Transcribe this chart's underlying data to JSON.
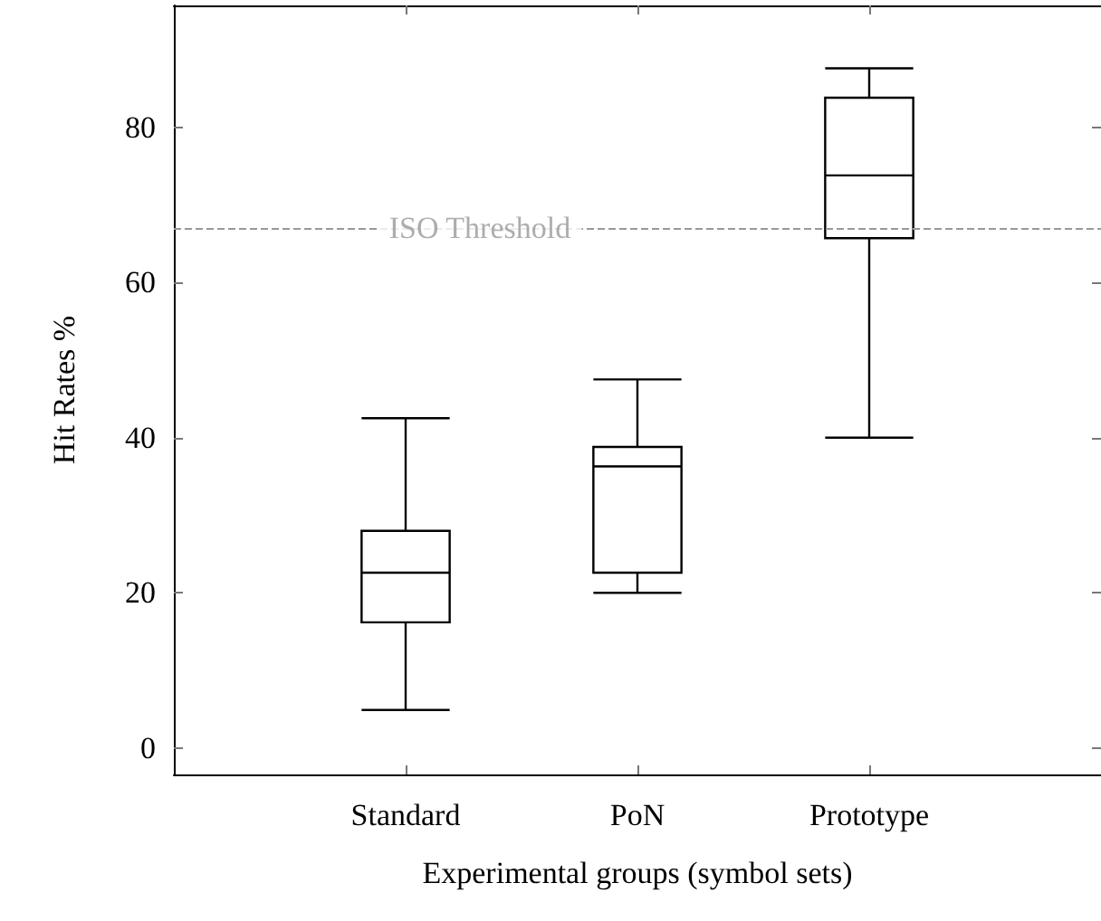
{
  "chart_data": {
    "type": "box",
    "xlabel": "Experimental groups (symbol sets)",
    "ylabel": "Hit Rates %",
    "categories": [
      "Standard",
      "PoN",
      "Prototype"
    ],
    "boxes": [
      {
        "low": 4.9,
        "q1": 16.2,
        "median": 22.6,
        "q3": 28.0,
        "high": 42.5
      },
      {
        "low": 20.0,
        "q1": 22.6,
        "median": 36.3,
        "q3": 38.8,
        "high": 47.5
      },
      {
        "low": 40.0,
        "q1": 65.7,
        "median": 73.8,
        "q3": 83.8,
        "high": 87.6
      }
    ],
    "ylim": [
      -3.4,
      95.7
    ],
    "yticks": [
      0,
      20,
      40,
      60,
      80
    ],
    "ref_lines": [
      {
        "axis": "y",
        "value": 67,
        "label": "ISO Threshold",
        "color": "#999999",
        "line_style": "dashed"
      }
    ],
    "grid": false
  }
}
